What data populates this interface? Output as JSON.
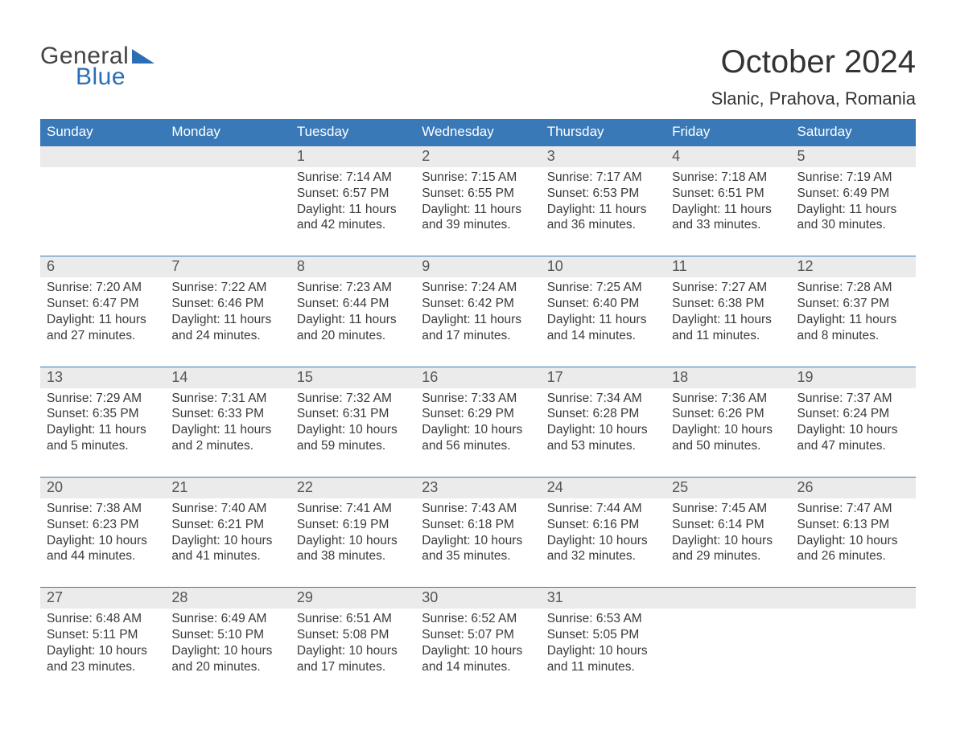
{
  "logo": {
    "word1": "General",
    "word2": "Blue",
    "color1": "#444444",
    "color2": "#2a6fb5"
  },
  "title": "October 2024",
  "location": "Slanic, Prahova, Romania",
  "colors": {
    "header_bg": "#3a79b7",
    "header_text": "#ffffff",
    "daynum_bg": "#ebebeb",
    "daynum_text": "#555555",
    "body_text": "#3a3a3a",
    "week_border": "#3a79b7",
    "page_bg": "#ffffff"
  },
  "typography": {
    "title_fontsize": 40,
    "location_fontsize": 22,
    "dayhead_fontsize": 17,
    "daynum_fontsize": 18,
    "body_fontsize": 15.5,
    "logo_fontsize": 30
  },
  "day_headers": [
    "Sunday",
    "Monday",
    "Tuesday",
    "Wednesday",
    "Thursday",
    "Friday",
    "Saturday"
  ],
  "weeks": [
    [
      {
        "n": "",
        "sunrise": "",
        "sunset": "",
        "daylight": ""
      },
      {
        "n": "",
        "sunrise": "",
        "sunset": "",
        "daylight": ""
      },
      {
        "n": "1",
        "sunrise": "Sunrise: 7:14 AM",
        "sunset": "Sunset: 6:57 PM",
        "daylight": "Daylight: 11 hours and 42 minutes."
      },
      {
        "n": "2",
        "sunrise": "Sunrise: 7:15 AM",
        "sunset": "Sunset: 6:55 PM",
        "daylight": "Daylight: 11 hours and 39 minutes."
      },
      {
        "n": "3",
        "sunrise": "Sunrise: 7:17 AM",
        "sunset": "Sunset: 6:53 PM",
        "daylight": "Daylight: 11 hours and 36 minutes."
      },
      {
        "n": "4",
        "sunrise": "Sunrise: 7:18 AM",
        "sunset": "Sunset: 6:51 PM",
        "daylight": "Daylight: 11 hours and 33 minutes."
      },
      {
        "n": "5",
        "sunrise": "Sunrise: 7:19 AM",
        "sunset": "Sunset: 6:49 PM",
        "daylight": "Daylight: 11 hours and 30 minutes."
      }
    ],
    [
      {
        "n": "6",
        "sunrise": "Sunrise: 7:20 AM",
        "sunset": "Sunset: 6:47 PM",
        "daylight": "Daylight: 11 hours and 27 minutes."
      },
      {
        "n": "7",
        "sunrise": "Sunrise: 7:22 AM",
        "sunset": "Sunset: 6:46 PM",
        "daylight": "Daylight: 11 hours and 24 minutes."
      },
      {
        "n": "8",
        "sunrise": "Sunrise: 7:23 AM",
        "sunset": "Sunset: 6:44 PM",
        "daylight": "Daylight: 11 hours and 20 minutes."
      },
      {
        "n": "9",
        "sunrise": "Sunrise: 7:24 AM",
        "sunset": "Sunset: 6:42 PM",
        "daylight": "Daylight: 11 hours and 17 minutes."
      },
      {
        "n": "10",
        "sunrise": "Sunrise: 7:25 AM",
        "sunset": "Sunset: 6:40 PM",
        "daylight": "Daylight: 11 hours and 14 minutes."
      },
      {
        "n": "11",
        "sunrise": "Sunrise: 7:27 AM",
        "sunset": "Sunset: 6:38 PM",
        "daylight": "Daylight: 11 hours and 11 minutes."
      },
      {
        "n": "12",
        "sunrise": "Sunrise: 7:28 AM",
        "sunset": "Sunset: 6:37 PM",
        "daylight": "Daylight: 11 hours and 8 minutes."
      }
    ],
    [
      {
        "n": "13",
        "sunrise": "Sunrise: 7:29 AM",
        "sunset": "Sunset: 6:35 PM",
        "daylight": "Daylight: 11 hours and 5 minutes."
      },
      {
        "n": "14",
        "sunrise": "Sunrise: 7:31 AM",
        "sunset": "Sunset: 6:33 PM",
        "daylight": "Daylight: 11 hours and 2 minutes."
      },
      {
        "n": "15",
        "sunrise": "Sunrise: 7:32 AM",
        "sunset": "Sunset: 6:31 PM",
        "daylight": "Daylight: 10 hours and 59 minutes."
      },
      {
        "n": "16",
        "sunrise": "Sunrise: 7:33 AM",
        "sunset": "Sunset: 6:29 PM",
        "daylight": "Daylight: 10 hours and 56 minutes."
      },
      {
        "n": "17",
        "sunrise": "Sunrise: 7:34 AM",
        "sunset": "Sunset: 6:28 PM",
        "daylight": "Daylight: 10 hours and 53 minutes."
      },
      {
        "n": "18",
        "sunrise": "Sunrise: 7:36 AM",
        "sunset": "Sunset: 6:26 PM",
        "daylight": "Daylight: 10 hours and 50 minutes."
      },
      {
        "n": "19",
        "sunrise": "Sunrise: 7:37 AM",
        "sunset": "Sunset: 6:24 PM",
        "daylight": "Daylight: 10 hours and 47 minutes."
      }
    ],
    [
      {
        "n": "20",
        "sunrise": "Sunrise: 7:38 AM",
        "sunset": "Sunset: 6:23 PM",
        "daylight": "Daylight: 10 hours and 44 minutes."
      },
      {
        "n": "21",
        "sunrise": "Sunrise: 7:40 AM",
        "sunset": "Sunset: 6:21 PM",
        "daylight": "Daylight: 10 hours and 41 minutes."
      },
      {
        "n": "22",
        "sunrise": "Sunrise: 7:41 AM",
        "sunset": "Sunset: 6:19 PM",
        "daylight": "Daylight: 10 hours and 38 minutes."
      },
      {
        "n": "23",
        "sunrise": "Sunrise: 7:43 AM",
        "sunset": "Sunset: 6:18 PM",
        "daylight": "Daylight: 10 hours and 35 minutes."
      },
      {
        "n": "24",
        "sunrise": "Sunrise: 7:44 AM",
        "sunset": "Sunset: 6:16 PM",
        "daylight": "Daylight: 10 hours and 32 minutes."
      },
      {
        "n": "25",
        "sunrise": "Sunrise: 7:45 AM",
        "sunset": "Sunset: 6:14 PM",
        "daylight": "Daylight: 10 hours and 29 minutes."
      },
      {
        "n": "26",
        "sunrise": "Sunrise: 7:47 AM",
        "sunset": "Sunset: 6:13 PM",
        "daylight": "Daylight: 10 hours and 26 minutes."
      }
    ],
    [
      {
        "n": "27",
        "sunrise": "Sunrise: 6:48 AM",
        "sunset": "Sunset: 5:11 PM",
        "daylight": "Daylight: 10 hours and 23 minutes."
      },
      {
        "n": "28",
        "sunrise": "Sunrise: 6:49 AM",
        "sunset": "Sunset: 5:10 PM",
        "daylight": "Daylight: 10 hours and 20 minutes."
      },
      {
        "n": "29",
        "sunrise": "Sunrise: 6:51 AM",
        "sunset": "Sunset: 5:08 PM",
        "daylight": "Daylight: 10 hours and 17 minutes."
      },
      {
        "n": "30",
        "sunrise": "Sunrise: 6:52 AM",
        "sunset": "Sunset: 5:07 PM",
        "daylight": "Daylight: 10 hours and 14 minutes."
      },
      {
        "n": "31",
        "sunrise": "Sunrise: 6:53 AM",
        "sunset": "Sunset: 5:05 PM",
        "daylight": "Daylight: 10 hours and 11 minutes."
      },
      {
        "n": "",
        "sunrise": "",
        "sunset": "",
        "daylight": ""
      },
      {
        "n": "",
        "sunrise": "",
        "sunset": "",
        "daylight": ""
      }
    ]
  ]
}
